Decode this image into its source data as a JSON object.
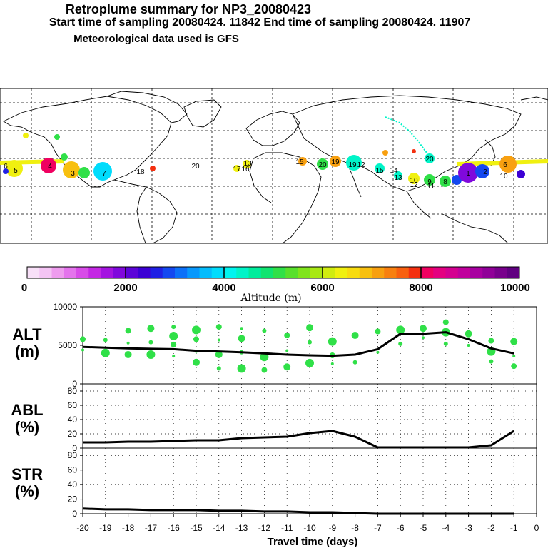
{
  "header": {
    "title": "Retroplume summary for NP3_20080423",
    "sampling": "Start time of sampling 20080424. 11842     End time of sampling 20080424. 11907",
    "met": "Meteorological data used is GFS"
  },
  "colorbar": {
    "label": "Altitude (m)",
    "ticks": [
      "0",
      "2000",
      "4000",
      "6000",
      "8000",
      "10000"
    ],
    "colors": [
      "#f8e0f8",
      "#f4c4f4",
      "#ee9cee",
      "#e474ec",
      "#d84ce8",
      "#c428e4",
      "#a414e0",
      "#8008dc",
      "#5c04d8",
      "#3c00d4",
      "#2020e4",
      "#1448f0",
      "#0c70f8",
      "#0898fc",
      "#04bcfc",
      "#00dcfc",
      "#00f4f0",
      "#00f4c8",
      "#00ec9c",
      "#10e470",
      "#30e048",
      "#58e02c",
      "#80e41c",
      "#a8e814",
      "#d0ec10",
      "#f0f010",
      "#f8dc10",
      "#f8c010",
      "#f8a010",
      "#f88010",
      "#f86010",
      "#f43010",
      "#f00060",
      "#e40080",
      "#d40090",
      "#c0009c",
      "#a800a0",
      "#900098",
      "#78008c",
      "#600080"
    ]
  },
  "map_labels": [
    {
      "t": "6",
      "c": "#f0f010"
    },
    {
      "t": "5",
      "c": "#f0f010"
    },
    {
      "t": "4",
      "c": "#f00060"
    },
    {
      "t": "3",
      "c": "#f8c010"
    },
    {
      "t": "7",
      "c": "#00dcfc"
    },
    {
      "t": "18",
      "c": "#f0f010"
    },
    {
      "t": "20",
      "c": "#f0f010"
    },
    {
      "t": "17",
      "c": "#f0f010"
    },
    {
      "t": "16",
      "c": "#f0f010"
    },
    {
      "t": "13",
      "c": "#f0f010"
    },
    {
      "t": "15",
      "c": "#f8c010"
    },
    {
      "t": "20",
      "c": "#30e048"
    },
    {
      "t": "19",
      "c": "#f8a010"
    },
    {
      "t": "19",
      "c": "#00f4c8"
    },
    {
      "t": "12",
      "c": "#00f4c8"
    },
    {
      "t": "15",
      "c": "#00f4c8"
    },
    {
      "t": "14",
      "c": "#f0f010"
    },
    {
      "t": "13",
      "c": "#00f4c8"
    },
    {
      "t": "10",
      "c": "#f0f010"
    },
    {
      "t": "12",
      "c": "#00f4c8"
    },
    {
      "t": "9",
      "c": "#30e048"
    },
    {
      "t": "11",
      "c": "#00f4c8"
    },
    {
      "t": "8",
      "c": "#30e048"
    },
    {
      "t": "20",
      "c": "#00f4c8"
    },
    {
      "t": "1",
      "c": "#8008dc"
    },
    {
      "t": "6",
      "c": "#f8a010"
    },
    {
      "t": "2",
      "c": "#1448f0"
    },
    {
      "t": "10",
      "c": "#f8c010"
    }
  ],
  "chart_data": [
    {
      "name": "ALT",
      "type": "line",
      "ylabel": "ALT (m)",
      "ylabel_lines": [
        "ALT",
        "(m)"
      ],
      "ylim": [
        0,
        10000
      ],
      "yticks": [
        "10000",
        "5000",
        "0"
      ],
      "x": [
        -20,
        -19,
        -18,
        -17,
        -16,
        -15,
        -14,
        -13,
        -12,
        -11,
        -10,
        -9,
        -8,
        -7,
        -6,
        -5,
        -4,
        -3,
        -2,
        -1
      ],
      "values": [
        4800,
        4700,
        4600,
        4550,
        4500,
        4300,
        4200,
        4100,
        3950,
        3800,
        3700,
        3650,
        3800,
        4500,
        6500,
        6500,
        6700,
        5800,
        4600,
        3950
      ],
      "scatter_points": [
        {
          "x": -20,
          "y": 4400
        },
        {
          "x": -20,
          "y": 5800
        },
        {
          "x": -19,
          "y": 4000
        },
        {
          "x": -19,
          "y": 5700
        },
        {
          "x": -18,
          "y": 3800
        },
        {
          "x": -18,
          "y": 5300
        },
        {
          "x": -18,
          "y": 6900
        },
        {
          "x": -17,
          "y": 3800
        },
        {
          "x": -17,
          "y": 5400
        },
        {
          "x": -17,
          "y": 7200
        },
        {
          "x": -16,
          "y": 3600
        },
        {
          "x": -16,
          "y": 5100
        },
        {
          "x": -16,
          "y": 6200
        },
        {
          "x": -16,
          "y": 7400
        },
        {
          "x": -15,
          "y": 2800
        },
        {
          "x": -15,
          "y": 4200
        },
        {
          "x": -15,
          "y": 5800
        },
        {
          "x": -15,
          "y": 7000
        },
        {
          "x": -14,
          "y": 2000
        },
        {
          "x": -14,
          "y": 3800
        },
        {
          "x": -14,
          "y": 5700
        },
        {
          "x": -14,
          "y": 7400
        },
        {
          "x": -13,
          "y": 2000
        },
        {
          "x": -13,
          "y": 4100
        },
        {
          "x": -13,
          "y": 5900
        },
        {
          "x": -13,
          "y": 7200
        },
        {
          "x": -12,
          "y": 1800
        },
        {
          "x": -12,
          "y": 3500
        },
        {
          "x": -12,
          "y": 6900
        },
        {
          "x": -11,
          "y": 2200
        },
        {
          "x": -11,
          "y": 4300
        },
        {
          "x": -11,
          "y": 6300
        },
        {
          "x": -10,
          "y": 2700
        },
        {
          "x": -10,
          "y": 5400
        },
        {
          "x": -10,
          "y": 7300
        },
        {
          "x": -9,
          "y": 2600
        },
        {
          "x": -9,
          "y": 3700
        },
        {
          "x": -9,
          "y": 5500
        },
        {
          "x": -8,
          "y": 2800
        },
        {
          "x": -8,
          "y": 6300
        },
        {
          "x": -7,
          "y": 4100
        },
        {
          "x": -7,
          "y": 6800
        },
        {
          "x": -6,
          "y": 7000
        },
        {
          "x": -6,
          "y": 5200
        },
        {
          "x": -5,
          "y": 7200
        },
        {
          "x": -5,
          "y": 6000
        },
        {
          "x": -4,
          "y": 8000
        },
        {
          "x": -4,
          "y": 6700
        },
        {
          "x": -4,
          "y": 5200
        },
        {
          "x": -3,
          "y": 6500
        },
        {
          "x": -3,
          "y": 5000
        },
        {
          "x": -2,
          "y": 5600
        },
        {
          "x": -2,
          "y": 4200
        },
        {
          "x": -2,
          "y": 2900
        },
        {
          "x": -1,
          "y": 5500
        },
        {
          "x": -1,
          "y": 3600
        },
        {
          "x": -1,
          "y": 2300
        }
      ]
    },
    {
      "name": "ABL",
      "type": "line",
      "ylabel": "ABL (%)",
      "ylabel_lines": [
        "ABL",
        "(%)"
      ],
      "ylim": [
        0,
        90
      ],
      "yticks": [
        "80",
        "60",
        "40",
        "20",
        "0"
      ],
      "x": [
        -20,
        -19,
        -18,
        -17,
        -16,
        -15,
        -14,
        -13,
        -12,
        -11,
        -10,
        -9,
        -8,
        -7,
        -6,
        -5,
        -4,
        -3,
        -2,
        -1
      ],
      "values": [
        8,
        8,
        9,
        9,
        10,
        11,
        11,
        14,
        15,
        16,
        21,
        24,
        16,
        1,
        1,
        1,
        1,
        1,
        4,
        24
      ]
    },
    {
      "name": "STR",
      "type": "line",
      "ylabel": "STR (%)",
      "ylabel_lines": [
        "STR",
        "(%)"
      ],
      "ylim": [
        0,
        90
      ],
      "yticks": [
        "80",
        "60",
        "40",
        "20",
        "0"
      ],
      "x": [
        -20,
        -19,
        -18,
        -17,
        -16,
        -15,
        -14,
        -13,
        -12,
        -11,
        -10,
        -9,
        -8,
        -7,
        -6,
        -5,
        -4,
        -3,
        -2,
        -1
      ],
      "values": [
        7,
        6,
        6,
        5,
        5,
        5,
        4,
        4,
        3,
        3,
        2,
        2,
        1,
        0,
        0,
        0,
        0,
        0,
        0,
        0
      ]
    }
  ],
  "xaxis": {
    "label": "Travel time (days)",
    "ticks": [
      "-20",
      "-19",
      "-18",
      "-17",
      "-16",
      "-15",
      "-14",
      "-13",
      "-12",
      "-11",
      "-10",
      "-9",
      "-8",
      "-7",
      "-6",
      "-5",
      "-4",
      "-3",
      "-2",
      "-1",
      "0"
    ]
  }
}
